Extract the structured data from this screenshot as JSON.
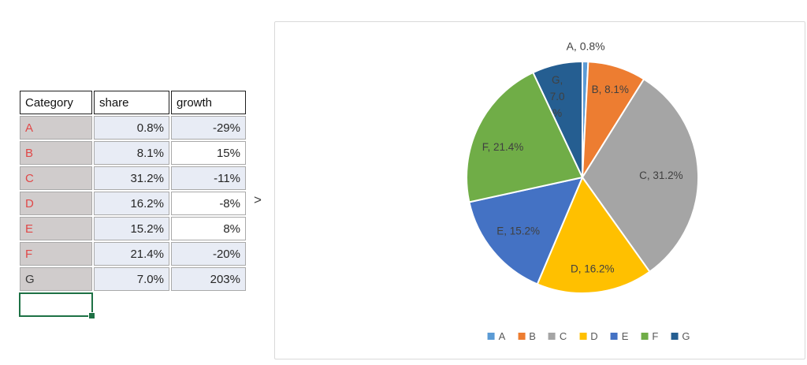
{
  "sheet": {
    "arrow_text": ">",
    "table": {
      "headers": [
        "Category",
        "share",
        "growth"
      ],
      "rows": [
        {
          "category": "A",
          "share": "0.8%",
          "growth": "-29%",
          "red": true,
          "growth_shaded": true
        },
        {
          "category": "B",
          "share": "8.1%",
          "growth": "15%",
          "red": true,
          "growth_shaded": false
        },
        {
          "category": "C",
          "share": "31.2%",
          "growth": "-11%",
          "red": true,
          "growth_shaded": true
        },
        {
          "category": "D",
          "share": "16.2%",
          "growth": "-8%",
          "red": true,
          "growth_shaded": false
        },
        {
          "category": "E",
          "share": "15.2%",
          "growth": "8%",
          "red": true,
          "growth_shaded": false
        },
        {
          "category": "F",
          "share": "21.4%",
          "growth": "-20%",
          "red": true,
          "growth_shaded": true
        },
        {
          "category": "G",
          "share": "7.0%",
          "growth": "203%",
          "red": false,
          "growth_shaded": true
        }
      ],
      "category_text_color_red": "#e04848",
      "category_cell_bg": "#d0cccc",
      "shaded_cell_bg": "#e8ecf5",
      "selection_border_color": "#1e7145"
    }
  },
  "chart_data": {
    "type": "pie",
    "title": "",
    "categories": [
      "A",
      "B",
      "C",
      "D",
      "E",
      "F",
      "G"
    ],
    "values": [
      0.8,
      8.1,
      31.2,
      16.2,
      15.2,
      21.4,
      7.0
    ],
    "labels": [
      "A, 0.8%",
      "B, 8.1%",
      "C, 31.2%",
      "D, 16.2%",
      "E, 15.2%",
      "F, 21.4%",
      "G, 7.0 %"
    ],
    "wrapped_label_lines": [
      "G,",
      "7.0",
      "%"
    ],
    "colors": [
      "#5B9BD5",
      "#ED7D31",
      "#A5A5A5",
      "#FFC000",
      "#4472C4",
      "#70AD47",
      "#255E91"
    ],
    "label_color": "#404040",
    "slice_gap_color": "#ffffff",
    "legend": [
      "A",
      "B",
      "C",
      "D",
      "E",
      "F",
      "G"
    ],
    "legend_position": "bottom",
    "start_angle": 0
  }
}
